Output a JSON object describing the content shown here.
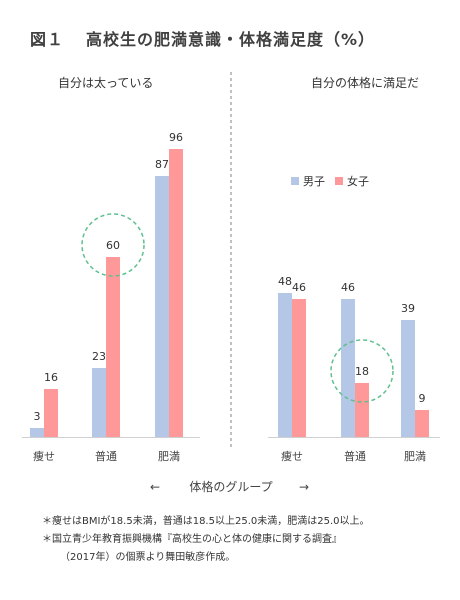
{
  "title": {
    "figure_number": "図１",
    "text": "高校生の肥満意識・体格満足度（%）"
  },
  "chart_data": [
    {
      "type": "bar",
      "panel_title": "自分は太っている",
      "categories": [
        "痩せ",
        "普通",
        "肥満"
      ],
      "series": [
        {
          "name": "男子",
          "color": "#b4c7e7",
          "values": [
            3,
            23,
            87
          ]
        },
        {
          "name": "女子",
          "color": "#ff9999",
          "values": [
            16,
            60,
            96
          ]
        }
      ],
      "ylim": [
        0,
        100
      ],
      "highlight": {
        "series": "女子",
        "category": "普通"
      }
    },
    {
      "type": "bar",
      "panel_title": "自分の体格に満足だ",
      "categories": [
        "痩せ",
        "普通",
        "肥満"
      ],
      "series": [
        {
          "name": "男子",
          "color": "#b4c7e7",
          "values": [
            48,
            46,
            39
          ]
        },
        {
          "name": "女子",
          "color": "#ff9999",
          "values": [
            46,
            18,
            9
          ]
        }
      ],
      "ylim": [
        0,
        100
      ],
      "legend": {
        "position": "top-right",
        "entries": [
          "男子",
          "女子"
        ]
      },
      "highlight": {
        "series": "女子",
        "category": "普通"
      }
    }
  ],
  "x_axis_label": "体格のグループ",
  "arrow_left": "←",
  "arrow_right": "→",
  "notes": [
    "＊痩せはBMIが18.5未満，普通は18.5以上25.0未満，肥満は25.0以上。",
    "＊国立青少年教育振興機構『高校生の心と体の健康に関する調査』",
    "（2017年）の個票より舞田敏彦作成。"
  ]
}
